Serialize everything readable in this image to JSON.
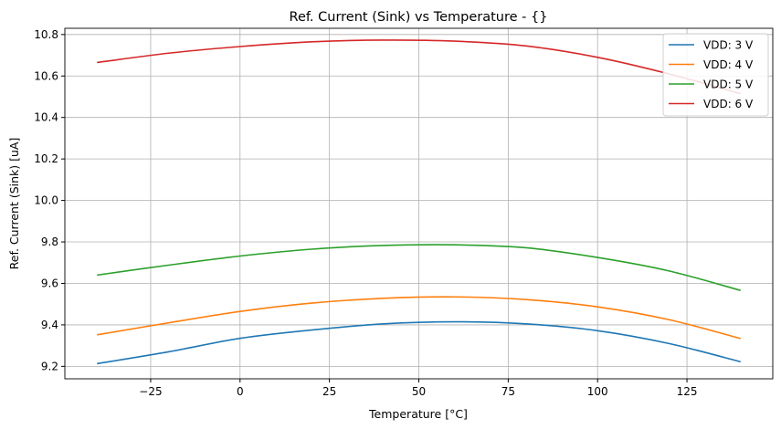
{
  "chart_data": {
    "type": "line",
    "title": "Ref. Current (Sink) vs Temperature - {}",
    "xlabel": "Temperature [°C]",
    "ylabel": "Ref. Current (Sink) [uA]",
    "xlim": [
      -49,
      149
    ],
    "ylim": [
      9.14,
      10.83
    ],
    "grid": true,
    "legend_position": "top-right",
    "xticks": [
      -25,
      0,
      25,
      50,
      75,
      100,
      125
    ],
    "yticks": [
      9.2,
      9.4,
      9.6,
      9.8,
      10.0,
      10.2,
      10.4,
      10.6,
      10.8
    ],
    "x": [
      -40,
      -20,
      0,
      20,
      40,
      60,
      80,
      100,
      120,
      140
    ],
    "series": [
      {
        "name": "VDD: 3 V",
        "color": "#1f77b4",
        "values": [
          9.213,
          9.27,
          9.335,
          9.375,
          9.405,
          9.415,
          9.405,
          9.372,
          9.31,
          9.222
        ]
      },
      {
        "name": "VDD: 4 V",
        "color": "#ff7f0e",
        "values": [
          9.352,
          9.41,
          9.465,
          9.505,
          9.528,
          9.535,
          9.522,
          9.487,
          9.425,
          9.334
        ]
      },
      {
        "name": "VDD: 5 V",
        "color": "#2ca02c",
        "values": [
          9.64,
          9.688,
          9.732,
          9.765,
          9.783,
          9.786,
          9.772,
          9.725,
          9.66,
          9.566
        ]
      },
      {
        "name": "VDD: 6 V",
        "color": "#d62728",
        "values": [
          10.665,
          10.71,
          10.742,
          10.765,
          10.773,
          10.768,
          10.745,
          10.69,
          10.61,
          10.515
        ]
      }
    ]
  }
}
